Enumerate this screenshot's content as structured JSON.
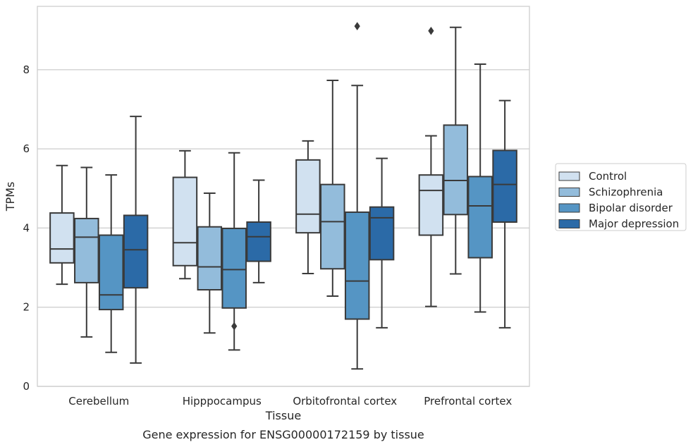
{
  "chart_data": {
    "type": "box",
    "title": "",
    "caption": "Gene expression for ENSG00000172159 by tissue",
    "xlabel": "Tissue",
    "ylabel": "TPMs",
    "ylim": [
      0,
      9.6
    ],
    "yticks": [
      0,
      2,
      4,
      6,
      8
    ],
    "categories": [
      "Cerebellum",
      "Hipppocampus",
      "Orbitofrontal cortex",
      "Prefrontal cortex"
    ],
    "grid": "horizontal",
    "legend_position": "right",
    "series": [
      {
        "name": "Control",
        "color": "#d1e1f0",
        "boxes": [
          {
            "whisker_low": 2.58,
            "q1": 3.12,
            "median": 3.47,
            "q3": 4.38,
            "whisker_high": 5.58,
            "outliers": []
          },
          {
            "whisker_low": 2.72,
            "q1": 3.05,
            "median": 3.63,
            "q3": 5.28,
            "whisker_high": 5.95,
            "outliers": []
          },
          {
            "whisker_low": 2.85,
            "q1": 3.88,
            "median": 4.35,
            "q3": 5.72,
            "whisker_high": 6.2,
            "outliers": []
          },
          {
            "whisker_low": 2.02,
            "q1": 3.82,
            "median": 4.95,
            "q3": 5.34,
            "whisker_high": 6.33,
            "outliers": [
              8.98
            ]
          }
        ]
      },
      {
        "name": "Schizophrenia",
        "color": "#93bcdb",
        "boxes": [
          {
            "whisker_low": 1.25,
            "q1": 2.62,
            "median": 3.77,
            "q3": 4.24,
            "whisker_high": 5.53,
            "outliers": []
          },
          {
            "whisker_low": 1.35,
            "q1": 2.44,
            "median": 3.02,
            "q3": 4.03,
            "whisker_high": 4.88,
            "outliers": []
          },
          {
            "whisker_low": 2.28,
            "q1": 2.97,
            "median": 4.16,
            "q3": 5.1,
            "whisker_high": 7.73,
            "outliers": []
          },
          {
            "whisker_low": 2.84,
            "q1": 4.34,
            "median": 5.2,
            "q3": 6.6,
            "whisker_high": 9.07,
            "outliers": []
          }
        ]
      },
      {
        "name": "Bipolar disorder",
        "color": "#5595c4",
        "boxes": [
          {
            "whisker_low": 0.86,
            "q1": 1.94,
            "median": 2.31,
            "q3": 3.82,
            "whisker_high": 5.34,
            "outliers": []
          },
          {
            "whisker_low": 0.92,
            "q1": 1.98,
            "median": 2.95,
            "q3": 3.99,
            "whisker_high": 5.9,
            "outliers": [
              1.52
            ]
          },
          {
            "whisker_low": 0.44,
            "q1": 1.7,
            "median": 2.66,
            "q3": 4.4,
            "whisker_high": 7.6,
            "outliers": [
              9.1
            ]
          },
          {
            "whisker_low": 1.88,
            "q1": 3.25,
            "median": 4.56,
            "q3": 5.3,
            "whisker_high": 8.14,
            "outliers": []
          }
        ]
      },
      {
        "name": "Major depression",
        "color": "#2b6aa7",
        "boxes": [
          {
            "whisker_low": 0.59,
            "q1": 2.49,
            "median": 3.45,
            "q3": 4.32,
            "whisker_high": 6.82,
            "outliers": []
          },
          {
            "whisker_low": 2.62,
            "q1": 3.16,
            "median": 3.78,
            "q3": 4.15,
            "whisker_high": 5.21,
            "outliers": []
          },
          {
            "whisker_low": 1.48,
            "q1": 3.2,
            "median": 4.26,
            "q3": 4.53,
            "whisker_high": 5.76,
            "outliers": []
          },
          {
            "whisker_low": 1.48,
            "q1": 4.15,
            "median": 5.1,
            "q3": 5.96,
            "whisker_high": 7.22,
            "outliers": []
          }
        ]
      }
    ]
  }
}
